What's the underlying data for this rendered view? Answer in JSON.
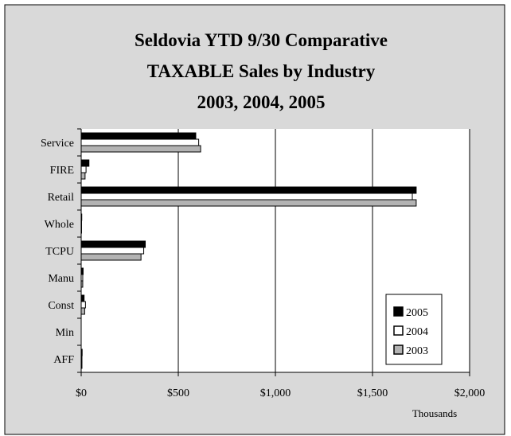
{
  "colors": {
    "plot_background": "#ffffff",
    "chart_background": "#d9d9d9",
    "series_2005": "#000000",
    "series_2004": "#ffffff",
    "series_2003": "#b3b3b3",
    "gridline": "#000000"
  },
  "chart_data": {
    "type": "bar",
    "orientation": "horizontal",
    "title_lines": [
      "Seldovia YTD 9/30 Comparative",
      "TAXABLE Sales by Industry",
      "2003, 2004, 2005"
    ],
    "categories": [
      "Service",
      "FIRE",
      "Retail",
      "Whole",
      "TCPU",
      "Manu",
      "Const",
      "Min",
      "AFF"
    ],
    "series": [
      {
        "name": "2005",
        "values": [
          590,
          40,
          1725,
          3,
          330,
          10,
          15,
          0,
          5
        ]
      },
      {
        "name": "2004",
        "values": [
          605,
          25,
          1705,
          2,
          322,
          8,
          22,
          0,
          4
        ]
      },
      {
        "name": "2003",
        "values": [
          615,
          20,
          1725,
          2,
          308,
          8,
          18,
          0,
          4
        ]
      }
    ],
    "xlim": [
      0,
      2000
    ],
    "x_ticks": [
      0,
      500,
      1000,
      1500,
      2000
    ],
    "x_tick_labels": [
      "$0",
      "$500",
      "$1,000",
      "$1,500",
      "$2,000"
    ],
    "xlabel": "Thousands",
    "grid": "vertical major gridlines",
    "legend": {
      "position": "bottom-right",
      "entries": [
        "2005",
        "2004",
        "2003"
      ]
    }
  }
}
